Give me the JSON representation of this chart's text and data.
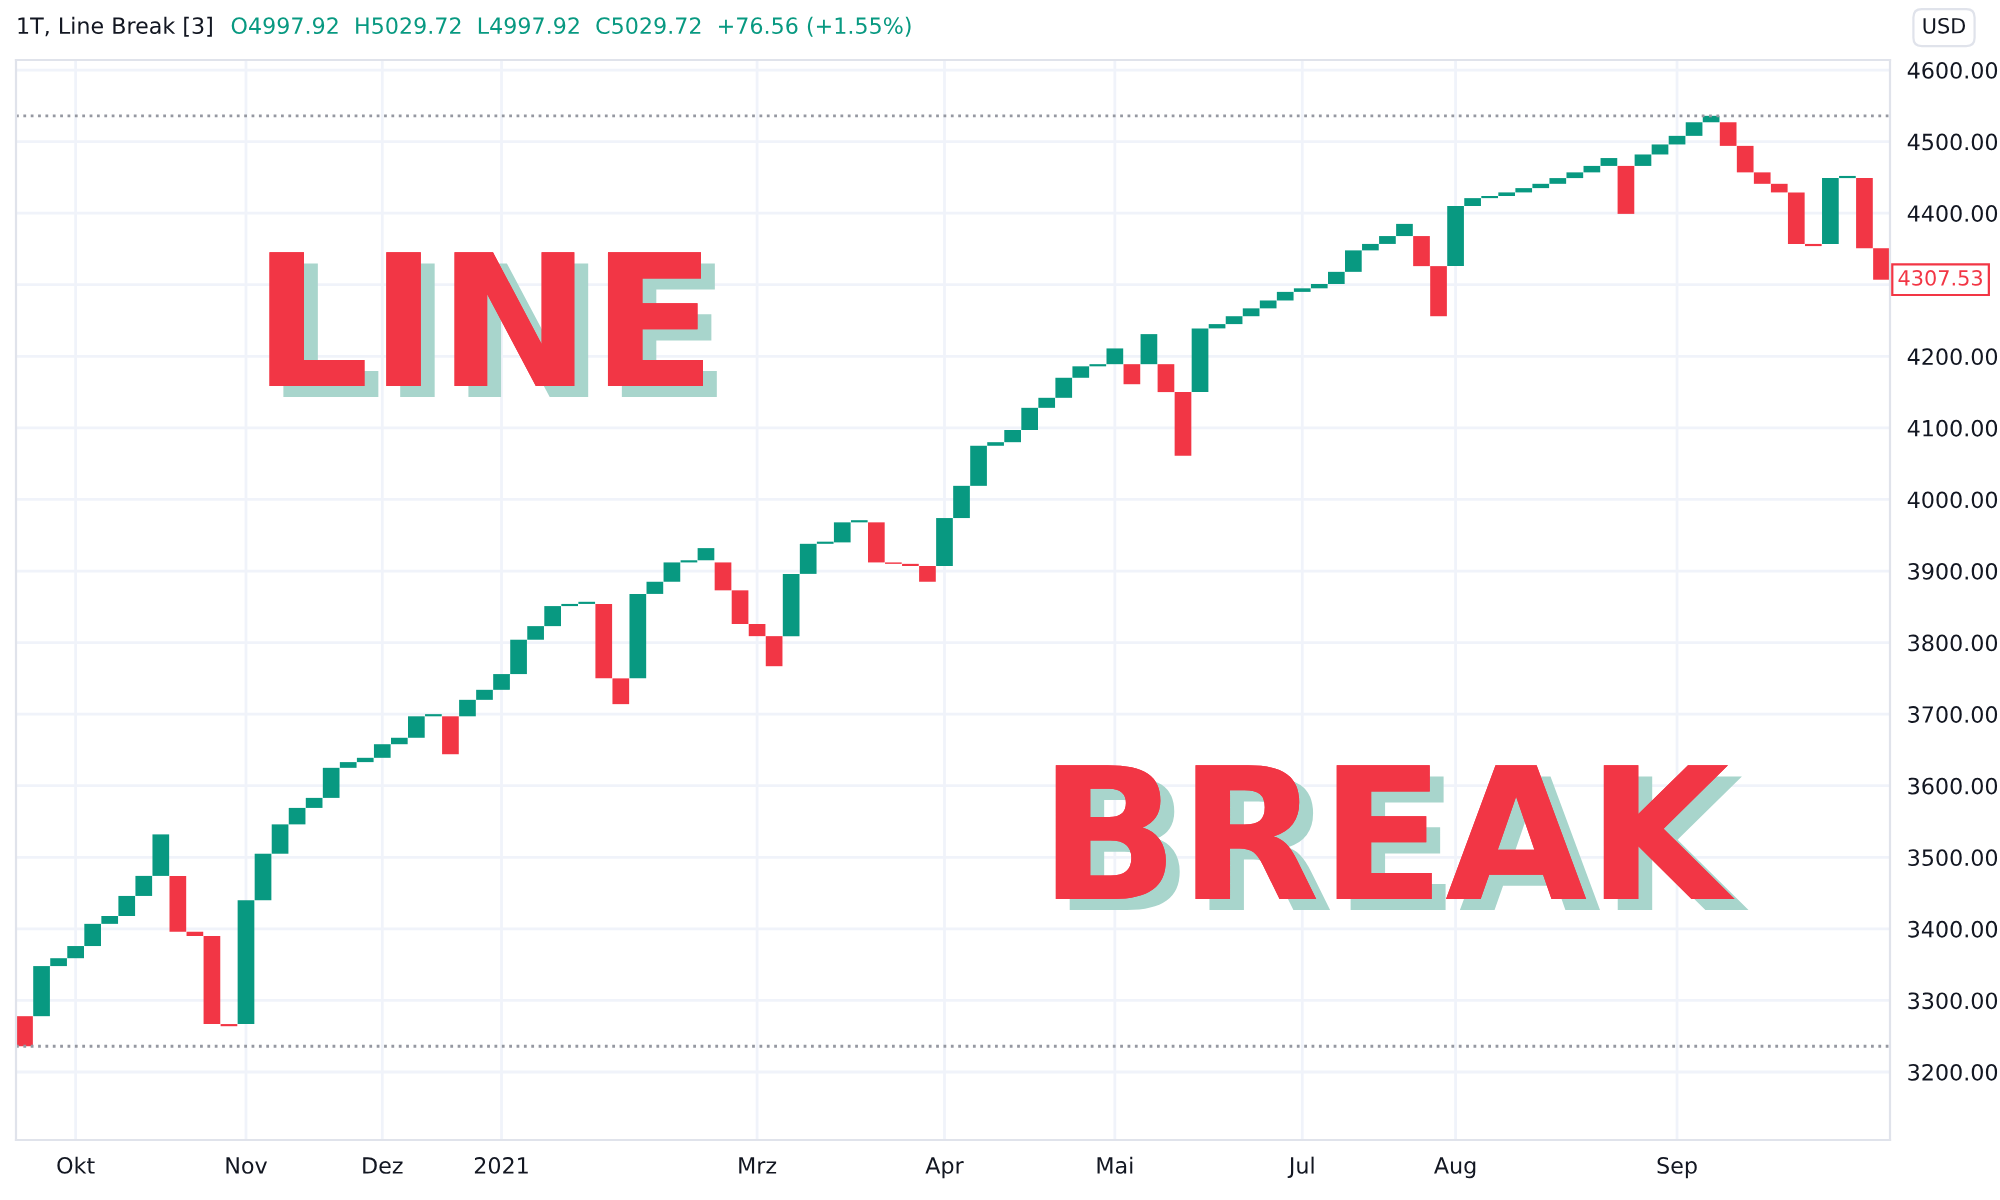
{
  "chart_data": {
    "type": "bar",
    "title": "1T, Line Break [3]",
    "subtitle": "O4997.92  H5029.72  L4997.92  C5029.72  +76.56 (+1.55%)",
    "categories": [
      null,
      null,
      null,
      "Okt",
      null,
      null,
      null,
      null,
      null,
      null,
      null,
      null,
      null,
      "Nov",
      null,
      null,
      null,
      null,
      null,
      null,
      null,
      "Dez",
      null,
      null,
      null,
      null,
      null,
      null,
      "2021",
      null,
      null,
      null,
      null,
      null,
      null,
      null,
      null,
      null,
      null,
      null,
      null,
      null,
      null,
      "Mrz",
      null,
      null,
      null,
      null,
      null,
      null,
      null,
      null,
      null,
      null,
      "Apr",
      null,
      null,
      null,
      null,
      null,
      null,
      null,
      null,
      null,
      "Mai",
      null,
      null,
      null,
      null,
      null,
      null,
      null,
      null,
      null,
      null,
      "Jul",
      null,
      null,
      null,
      null,
      null,
      null,
      null,
      null,
      "Aug",
      null,
      null,
      null,
      null,
      null,
      null,
      null,
      null,
      null,
      null,
      null,
      null,
      "Sep",
      null,
      null,
      null,
      null,
      null,
      null,
      null,
      null,
      null,
      null,
      null,
      null
    ],
    "base": [
      3278,
      3278,
      3348,
      3359,
      3376,
      3407,
      3418,
      3446,
      3474,
      3474,
      3396,
      3390,
      3267,
      3267,
      3440,
      3505,
      3546,
      3569,
      3583,
      3625,
      3633,
      3639,
      3658,
      3667,
      3697,
      3697,
      3697,
      3720,
      3734,
      3756,
      3804,
      3823,
      3851,
      3854,
      3854,
      3750,
      3750,
      3868,
      3885,
      3912,
      3915,
      3912,
      3873,
      3826,
      3809,
      3809,
      3896,
      3938,
      3940,
      3968,
      3968,
      3912,
      3910,
      3907,
      3907,
      3974,
      4019,
      4075,
      4080,
      4097,
      4128,
      4142,
      4170,
      4186,
      4189,
      4189,
      4189,
      4189,
      4150,
      4150,
      4239,
      4245,
      4256,
      4267,
      4278,
      4290,
      4295,
      4301,
      4318,
      4348,
      4357,
      4368,
      4368,
      4326,
      4326,
      4410,
      4421,
      4424,
      4429,
      4435,
      4441,
      4449,
      4457,
      4466,
      4466,
      4466,
      4482,
      4496,
      4508,
      4527,
      4527,
      4494,
      4457,
      4441,
      4429,
      4357,
      4357,
      4449,
      4449,
      4351
    ],
    "values": [
      -42,
      70,
      11,
      17,
      31,
      11,
      28,
      28,
      58,
      -78,
      -6,
      -123,
      -3,
      173,
      65,
      41,
      23,
      14,
      42,
      8,
      6,
      19,
      9,
      30,
      3,
      -53,
      23,
      14,
      22,
      48,
      19,
      28,
      3,
      3,
      -104,
      -36,
      118,
      17,
      27,
      3,
      17,
      -39,
      -47,
      -17,
      -42,
      87,
      42,
      3,
      28,
      3,
      -56,
      -2,
      -3,
      -22,
      67,
      45,
      56,
      5,
      17,
      31,
      14,
      28,
      16,
      3,
      22,
      -28,
      42,
      -39,
      -89,
      89,
      6,
      11,
      11,
      11,
      12,
      5,
      6,
      17,
      30,
      9,
      11,
      17,
      -42,
      -70,
      84,
      11,
      3,
      5,
      6,
      6,
      8,
      8,
      9,
      11,
      -67,
      16,
      14,
      12,
      19,
      9,
      -33,
      -37,
      -16,
      -12,
      -72,
      -3,
      92,
      3,
      -98,
      -44
    ],
    "colors": [
      "#f23645",
      "#089981",
      "#089981",
      "#089981",
      "#089981",
      "#089981",
      "#089981",
      "#089981",
      "#089981",
      "#f23645",
      "#f23645",
      "#f23645",
      "#f23645",
      "#089981",
      "#089981",
      "#089981",
      "#089981",
      "#089981",
      "#089981",
      "#089981",
      "#089981",
      "#089981",
      "#089981",
      "#089981",
      "#089981",
      "#f23645",
      "#089981",
      "#089981",
      "#089981",
      "#089981",
      "#089981",
      "#089981",
      "#089981",
      "#089981",
      "#f23645",
      "#f23645",
      "#089981",
      "#089981",
      "#089981",
      "#089981",
      "#089981",
      "#f23645",
      "#f23645",
      "#f23645",
      "#f23645",
      "#089981",
      "#089981",
      "#089981",
      "#089981",
      "#089981",
      "#f23645",
      "#f23645",
      "#f23645",
      "#f23645",
      "#089981",
      "#089981",
      "#089981",
      "#089981",
      "#089981",
      "#089981",
      "#089981",
      "#089981",
      "#089981",
      "#089981",
      "#089981",
      "#f23645",
      "#089981",
      "#f23645",
      "#f23645",
      "#089981",
      "#089981",
      "#089981",
      "#089981",
      "#089981",
      "#089981",
      "#089981",
      "#089981",
      "#089981",
      "#089981",
      "#089981",
      "#089981",
      "#089981",
      "#f23645",
      "#f23645",
      "#089981",
      "#089981",
      "#089981",
      "#089981",
      "#089981",
      "#089981",
      "#089981",
      "#089981",
      "#089981",
      "#089981",
      "#f23645",
      "#089981",
      "#089981",
      "#089981",
      "#089981",
      "#089981",
      "#f23645",
      "#f23645",
      "#f23645",
      "#f23645",
      "#f23645",
      "#f23645",
      "#089981",
      "#089981",
      "#f23645",
      "#f23645"
    ],
    "ylim": [
      3105,
      4614
    ],
    "yticks": [
      {
        "value": 3200,
        "label": "3200.00"
      },
      {
        "value": 3300,
        "label": "3300.00"
      },
      {
        "value": 3400,
        "label": "3400.00"
      },
      {
        "value": 3500,
        "label": "3500.00"
      },
      {
        "value": 3600,
        "label": "3600.00"
      },
      {
        "value": 3700,
        "label": "3700.00"
      },
      {
        "value": 3800,
        "label": "3800.00"
      },
      {
        "value": 3900,
        "label": "3900.00"
      },
      {
        "value": 4000,
        "label": "4000.00"
      },
      {
        "value": 4100,
        "label": "4100.00"
      },
      {
        "value": 4200,
        "label": "4200.00"
      },
      {
        "value": 4300,
        "label": null
      },
      {
        "value": 4400,
        "label": "4400.00"
      },
      {
        "value": 4500,
        "label": "4500.00"
      },
      {
        "value": 4600,
        "label": "4600.00"
      }
    ],
    "ref_lines": [
      {
        "axis": "y",
        "value": 4536,
        "color": "#9598a1",
        "line_style": "dotted"
      },
      {
        "axis": "y",
        "value": 3236,
        "color": "#9598a1",
        "line_style": "dotted"
      }
    ],
    "annotations": [
      "LINE",
      "BREAK",
      "USD",
      "4307.53"
    ],
    "grid": true,
    "legend": false
  }
}
